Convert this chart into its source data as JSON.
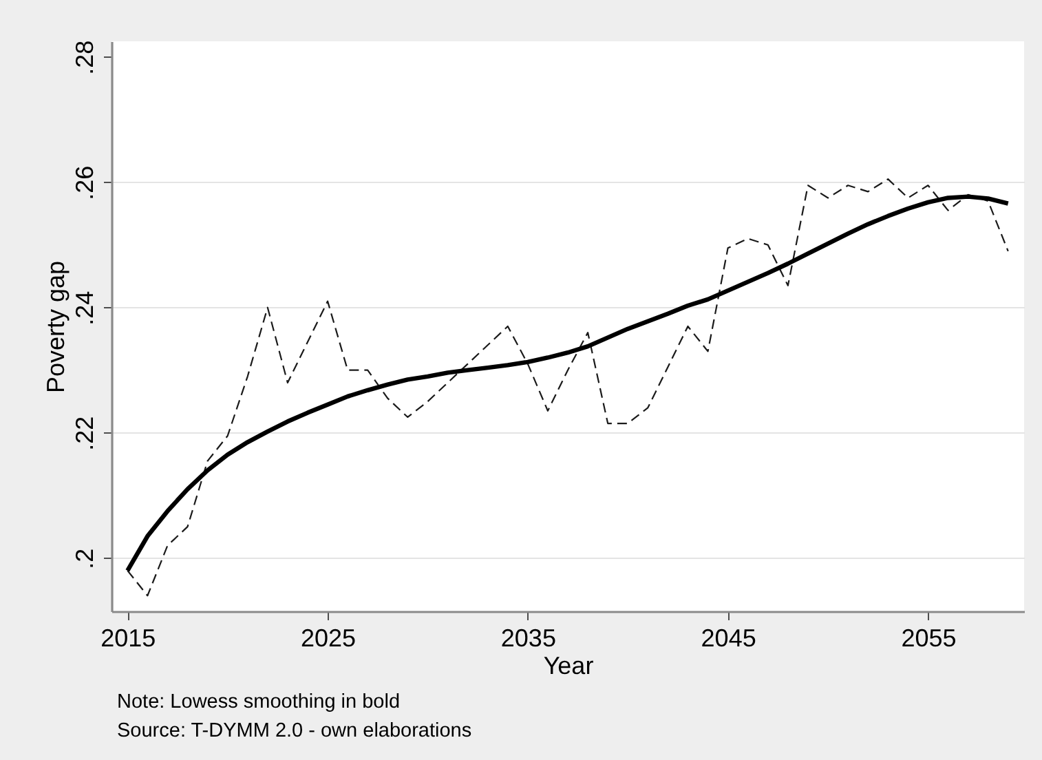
{
  "chart_data": {
    "type": "line",
    "xlabel": "Year",
    "ylabel": "Poverty gap",
    "x": [
      2015,
      2016,
      2017,
      2018,
      2019,
      2020,
      2021,
      2022,
      2023,
      2024,
      2025,
      2026,
      2027,
      2028,
      2029,
      2030,
      2031,
      2032,
      2033,
      2034,
      2035,
      2036,
      2037,
      2038,
      2039,
      2040,
      2041,
      2042,
      2043,
      2044,
      2045,
      2046,
      2047,
      2048,
      2049,
      2050,
      2051,
      2052,
      2053,
      2054,
      2055,
      2056,
      2057,
      2058,
      2059
    ],
    "series": [
      {
        "type": "line",
        "color": "#1a1a1a",
        "line_style": "dashed",
        "values": [
          0.198,
          0.194,
          0.202,
          0.205,
          0.2155,
          0.2195,
          0.229,
          0.24,
          0.228,
          0.2345,
          0.241,
          0.23,
          0.23,
          0.2255,
          0.2225,
          0.225,
          0.228,
          0.231,
          0.234,
          0.237,
          0.231,
          0.2235,
          0.23,
          0.236,
          0.2215,
          0.2215,
          0.224,
          0.2305,
          0.237,
          0.233,
          0.2495,
          0.251,
          0.25,
          0.2435,
          0.2595,
          0.2575,
          0.2595,
          0.2585,
          0.2605,
          0.2575,
          0.2595,
          0.2555,
          0.258,
          0.257,
          0.249
        ]
      },
      {
        "type": "line",
        "color": "#000000",
        "line_style": "solid",
        "x": [
          2015,
          2016,
          2017,
          2018,
          2019,
          2020,
          2021,
          2022,
          2023,
          2024,
          2025,
          2026,
          2027,
          2028,
          2029,
          2030,
          2031,
          2032,
          2033,
          2034,
          2035,
          2036,
          2037,
          2038,
          2039,
          2040,
          2041,
          2042,
          2043,
          2044,
          2045,
          2046,
          2047,
          2048,
          2049,
          2050,
          2051,
          2052,
          2053,
          2054,
          2055,
          2056,
          2057,
          2058,
          2059
        ],
        "values": [
          0.198,
          0.2035,
          0.2075,
          0.211,
          0.214,
          0.2165,
          0.2185,
          0.2202,
          0.2218,
          0.2232,
          0.2245,
          0.2258,
          0.2268,
          0.2277,
          0.2285,
          0.229,
          0.2296,
          0.23,
          0.2304,
          0.2308,
          0.2313,
          0.232,
          0.2328,
          0.2338,
          0.2352,
          0.2366,
          0.2378,
          0.239,
          0.2403,
          0.2413,
          0.2427,
          0.2441,
          0.2455,
          0.247,
          0.2486,
          0.2502,
          0.2518,
          0.2533,
          0.2546,
          0.2558,
          0.2568,
          0.2575,
          0.2577,
          0.2574,
          0.2566
        ]
      }
    ],
    "xlim": [
      2014.2,
      2059.8
    ],
    "xticks": [
      2015,
      2025,
      2035,
      2045,
      2055
    ],
    "ylim": [
      0.1915,
      0.2825
    ],
    "yticks": [
      {
        "value": 0.2,
        "label": ".2"
      },
      {
        "value": 0.22,
        "label": ".22"
      },
      {
        "value": 0.24,
        "label": ".24"
      },
      {
        "value": 0.26,
        "label": ".26"
      },
      {
        "value": 0.28,
        "label": ".28"
      }
    ],
    "grid": "y",
    "annotations": [
      "Note: Lowess smoothing in bold",
      "Source: T-DYMM 2.0 - own elaborations"
    ]
  }
}
